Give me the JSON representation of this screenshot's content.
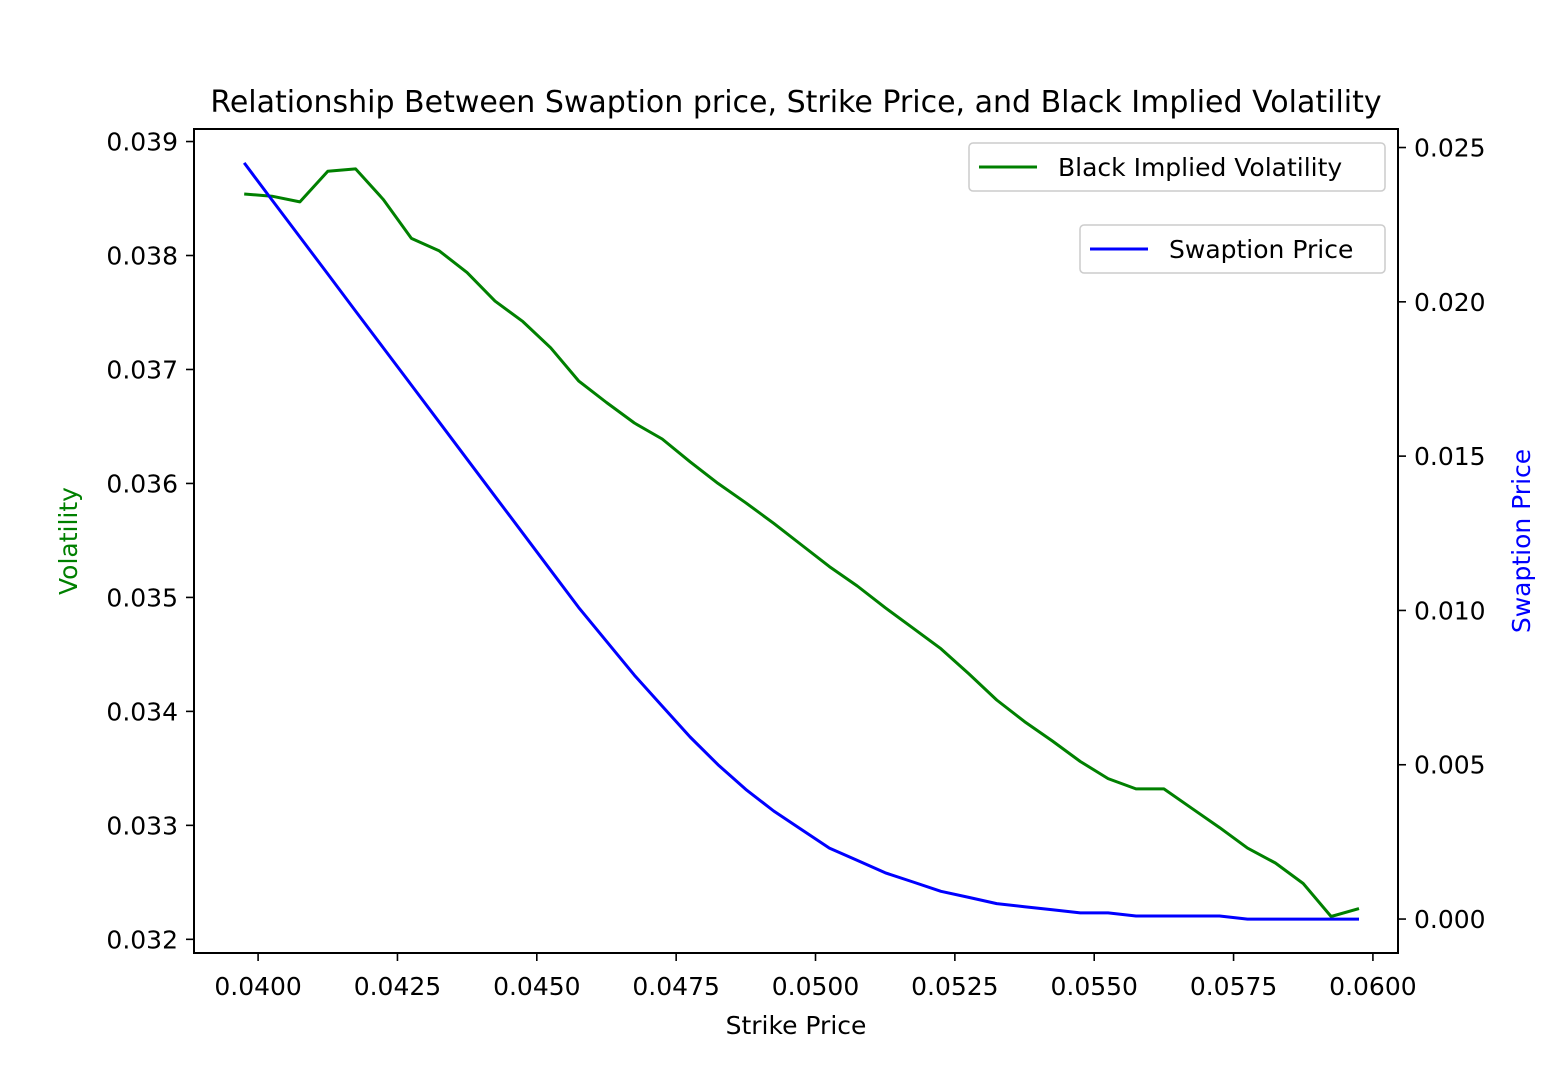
{
  "chart_data": {
    "type": "line",
    "title": "Relationship Between Swaption price, Strike Price, and Black Implied Volatility",
    "xlabel": "Strike Price",
    "ylabel_left": "Volatility",
    "ylabel_right": "Swaption Price",
    "xlim": [
      0.03885,
      0.06045
    ],
    "ylim_left": [
      0.03188,
      0.03911
    ],
    "ylim_right": [
      -0.0011,
      0.0256
    ],
    "x_ticks": [
      "0.0400",
      "0.0425",
      "0.0450",
      "0.0475",
      "0.0500",
      "0.0525",
      "0.0550",
      "0.0575",
      "0.0600"
    ],
    "y_left_ticks": [
      "0.032",
      "0.033",
      "0.034",
      "0.035",
      "0.036",
      "0.037",
      "0.038",
      "0.039"
    ],
    "y_right_ticks": [
      "0.000",
      "0.005",
      "0.010",
      "0.015",
      "0.020",
      "0.025"
    ],
    "grid": false,
    "series": [
      {
        "name": "Black Implied Volatility",
        "axis": "left",
        "color": "#008000",
        "x": [
          0.03975,
          0.04025,
          0.04075,
          0.04125,
          0.04175,
          0.04225,
          0.04275,
          0.04325,
          0.04375,
          0.04425,
          0.04475,
          0.04525,
          0.04575,
          0.04625,
          0.04675,
          0.04725,
          0.04775,
          0.04825,
          0.04875,
          0.04925,
          0.04975,
          0.05025,
          0.05075,
          0.05125,
          0.05175,
          0.05225,
          0.05275,
          0.05325,
          0.05375,
          0.05425,
          0.05475,
          0.05525,
          0.05575,
          0.05625,
          0.05675,
          0.05725,
          0.05775,
          0.05825,
          0.05875,
          0.05925,
          0.05975
        ],
        "values": [
          0.03854,
          0.03852,
          0.03847,
          0.03874,
          0.03876,
          0.03849,
          0.03815,
          0.03804,
          0.03785,
          0.0376,
          0.03742,
          0.03719,
          0.0369,
          0.03671,
          0.03653,
          0.03639,
          0.03619,
          0.036,
          0.03583,
          0.03565,
          0.03546,
          0.03527,
          0.0351,
          0.03491,
          0.03473,
          0.03455,
          0.03433,
          0.0341,
          0.03391,
          0.03374,
          0.03356,
          0.03341,
          0.03332,
          0.03332,
          0.03315,
          0.03298,
          0.0328,
          0.03267,
          0.03249,
          0.0322,
          0.03227
        ]
      },
      {
        "name": "Swaption Price",
        "axis": "right",
        "color": "#0000ff",
        "x": [
          0.03975,
          0.04025,
          0.04075,
          0.04125,
          0.04175,
          0.04225,
          0.04275,
          0.04325,
          0.04375,
          0.04425,
          0.04475,
          0.04525,
          0.04575,
          0.04625,
          0.04675,
          0.04725,
          0.04775,
          0.04825,
          0.04875,
          0.04925,
          0.04975,
          0.05025,
          0.05075,
          0.05125,
          0.05175,
          0.05225,
          0.05275,
          0.05325,
          0.05375,
          0.05425,
          0.05475,
          0.05525,
          0.05575,
          0.05625,
          0.05675,
          0.05725,
          0.05775,
          0.05825,
          0.05875,
          0.05925,
          0.05975
        ],
        "values": [
          0.0245,
          0.0233,
          0.0221,
          0.0209,
          0.0197,
          0.0185,
          0.0173,
          0.0161,
          0.0149,
          0.0137,
          0.0125,
          0.0113,
          0.0101,
          0.009,
          0.0079,
          0.0069,
          0.0059,
          0.005,
          0.0042,
          0.0035,
          0.0029,
          0.0023,
          0.0019,
          0.0015,
          0.0012,
          0.0009,
          0.0007,
          0.0005,
          0.0004,
          0.0003,
          0.0002,
          0.0002,
          0.0001,
          0.0001,
          0.0001,
          0.0001,
          0.0,
          0.0,
          0.0,
          0.0,
          0.0
        ]
      }
    ],
    "legends": [
      {
        "entries": [
          "Black Implied Volatility"
        ],
        "placement": "upper right"
      },
      {
        "entries": [
          "Swaption Price"
        ],
        "placement": "upper right, below first legend"
      }
    ]
  }
}
